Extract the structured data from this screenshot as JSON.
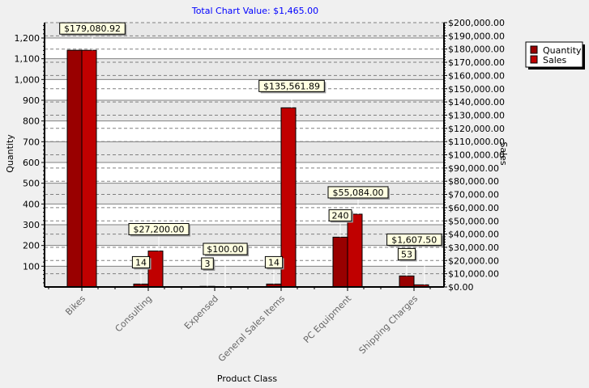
{
  "chart_data": {
    "type": "bar",
    "title": "Total Chart Value: $1,465.00",
    "xlabel": "Product Class",
    "ylabel": "Quantity",
    "y2label": "Sales",
    "categories": [
      "Bikes",
      "Consulting",
      "Expensed",
      "General Sales Items",
      "PC Equipment",
      "Shipping Charges"
    ],
    "series": [
      {
        "name": "Quantity",
        "axis": "left",
        "color": "#990000",
        "values": [
          1141,
          14,
          3,
          14,
          240,
          53
        ],
        "labels": [
          "",
          "14",
          "3",
          "14",
          "240",
          "53"
        ]
      },
      {
        "name": "Sales",
        "axis": "right",
        "color": "#C00000",
        "values": [
          179080.92,
          27200.0,
          100.0,
          135561.89,
          55084.0,
          1607.5
        ],
        "labels": [
          "$179,080.92",
          "$27,200.00",
          "$100.00",
          "$135,561.89",
          "$55,084.00",
          "$1,607.50"
        ]
      }
    ],
    "ylim": [
      0,
      1274
    ],
    "y2lim": [
      0,
      200000
    ],
    "yticks": [
      "100",
      "200",
      "300",
      "400",
      "500",
      "600",
      "700",
      "800",
      "900",
      "1,000",
      "1,100",
      "1,200"
    ],
    "y2ticks": [
      "$0.00",
      "$10,000.00",
      "$20,000.00",
      "$30,000.00",
      "$40,000.00",
      "$50,000.00",
      "$60,000.00",
      "$70,000.00",
      "$80,000.00",
      "$90,000.00",
      "$100,000.00",
      "$110,000.00",
      "$120,000.00",
      "$130,000.00",
      "$140,000.00",
      "$150,000.00",
      "$160,000.00",
      "$170,000.00",
      "$180,000.00",
      "$190,000.00",
      "$200,000.00"
    ],
    "legend": {
      "position": "top-right",
      "entries": [
        "Quantity",
        "Sales"
      ]
    },
    "grid": true
  }
}
